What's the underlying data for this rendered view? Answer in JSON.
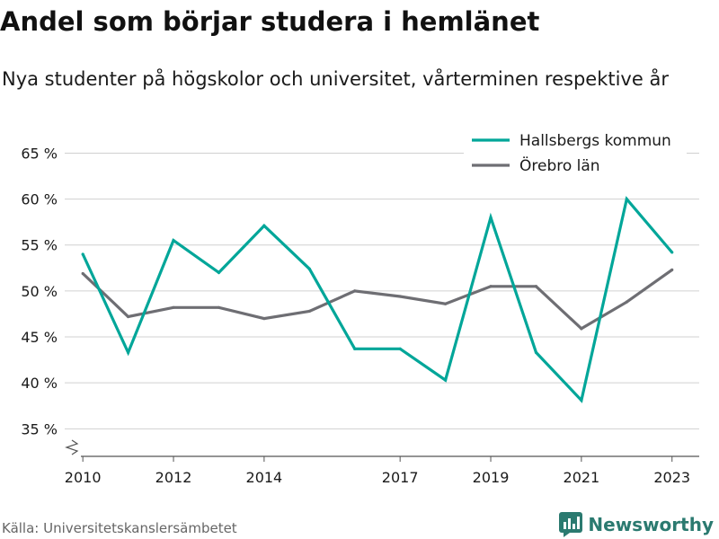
{
  "colors": {
    "series_hallsberg": "#00a699",
    "series_orebro": "#6e6e73",
    "grid": "#d0d0d0",
    "axis": "#555555",
    "text": "#1a1a1a",
    "source": "#666666",
    "brand": "#2b7a70"
  },
  "chart_data": {
    "type": "line",
    "title": "Andel som börjar studera i hemlänet",
    "subtitle": "Nya studenter på högskolor och universitet, vårterminen respektive år",
    "xlabel": "",
    "ylabel": "",
    "x": [
      2010,
      2011,
      2012,
      2013,
      2014,
      2015,
      2016,
      2017,
      2018,
      2019,
      2020,
      2021,
      2022,
      2023
    ],
    "x_ticks": [
      2010,
      2012,
      2014,
      2017,
      2019,
      2021,
      2023
    ],
    "x_range": [
      2009.6,
      2023.6
    ],
    "y_ticks": [
      35,
      40,
      45,
      50,
      55,
      60,
      65
    ],
    "y_tick_labels": [
      "35 %",
      "40 %",
      "45 %",
      "50 %",
      "55 %",
      "60 %",
      "65 %"
    ],
    "ylim": [
      32,
      67
    ],
    "y_axis_break": true,
    "grid": "horizontal",
    "legend_position": "top-right",
    "series": [
      {
        "name": "Hallsbergs kommun",
        "color_key": "series_hallsberg",
        "values": [
          54.0,
          43.3,
          55.5,
          52.0,
          57.1,
          52.4,
          43.7,
          43.7,
          40.3,
          58.0,
          43.3,
          38.1,
          60.0,
          54.2
        ]
      },
      {
        "name": "Örebro län",
        "color_key": "series_orebro",
        "values": [
          51.9,
          47.2,
          48.2,
          48.2,
          47.0,
          47.8,
          50.0,
          49.4,
          48.6,
          50.5,
          50.5,
          45.9,
          48.8,
          52.3
        ]
      }
    ]
  },
  "footer": {
    "source": "Källa: Universitetskanslersämbetet",
    "brand": "Newsworthy"
  }
}
